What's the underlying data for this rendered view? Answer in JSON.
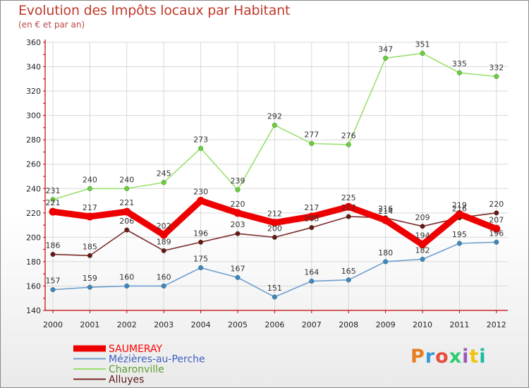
{
  "header": {
    "title": "Evolution des Impôts locaux par Habitant",
    "subtitle": "(en € et par an)"
  },
  "logo": {
    "text": "Proxiti",
    "colors": [
      "#e67e22",
      "#3498db",
      "#e74c3c",
      "#2ecc71",
      "#9b59b6",
      "#f1c40f",
      "#1abc9c"
    ]
  },
  "colors": {
    "axis": "#c00000",
    "tick_label": "#222222",
    "grid": "#d8d8d8"
  },
  "chart_data": {
    "type": "line",
    "title": "Evolution des Impôts locaux par Habitant",
    "subtitle": "(en € et par an)",
    "xlabel": "",
    "ylabel": "",
    "categories": [
      "2000",
      "2001",
      "2002",
      "2003",
      "2004",
      "2005",
      "2006",
      "2007",
      "2008",
      "2009",
      "2010",
      "2011",
      "2012"
    ],
    "ylim": [
      140,
      360
    ],
    "yticks": [
      140,
      160,
      180,
      200,
      220,
      240,
      260,
      280,
      300,
      320,
      340,
      360
    ],
    "grid": true,
    "legend_position": "bottom-left",
    "series": [
      {
        "name": "SAUMERAY",
        "values": [
          221,
          217,
          221,
          202,
          230,
          220,
          212,
          217,
          225,
          214,
          194,
          219,
          207
        ],
        "labels": [
          "221",
          "217",
          "221",
          "202",
          "230",
          "220",
          "212",
          "217",
          "225",
          "214",
          "194",
          "219",
          "207"
        ],
        "color": "#ee0000",
        "marker_color": "#ee0000",
        "legend_color": "#ff0000",
        "emphasis": true
      },
      {
        "name": "Mézières-au-Perche",
        "values": [
          157,
          159,
          160,
          160,
          175,
          167,
          151,
          164,
          165,
          180,
          182,
          195,
          196
        ],
        "labels": [
          "157",
          "159",
          "160",
          "160",
          "175",
          "167",
          "151",
          "164",
          "165",
          "180",
          "182",
          "195",
          "196"
        ],
        "color": "#6f9fcf",
        "marker_color": "#3d86c6",
        "legend_color": "#3d5fc0",
        "emphasis": false
      },
      {
        "name": "Charonville",
        "values": [
          231,
          240,
          240,
          245,
          273,
          239,
          292,
          277,
          276,
          347,
          351,
          335,
          332
        ],
        "labels": [
          "231",
          "240",
          "240",
          "245",
          "273",
          "239",
          "292",
          "277",
          "276",
          "347",
          "351",
          "335",
          "332"
        ],
        "color": "#9be070",
        "marker_color": "#6ccf3a",
        "legend_color": "#5a9e2f",
        "emphasis": false
      },
      {
        "name": "Alluyes",
        "values": [
          186,
          185,
          206,
          189,
          196,
          203,
          200,
          208,
          217,
          216,
          209,
          216,
          220
        ],
        "labels": [
          "186",
          "185",
          "206",
          "189",
          "196",
          "203",
          "200",
          "208",
          "217",
          "216",
          "209",
          "216",
          "220"
        ],
        "color": "#7a2a2a",
        "marker_color": "#6b1515",
        "legend_color": "#5a1a1a",
        "emphasis": false
      }
    ]
  }
}
